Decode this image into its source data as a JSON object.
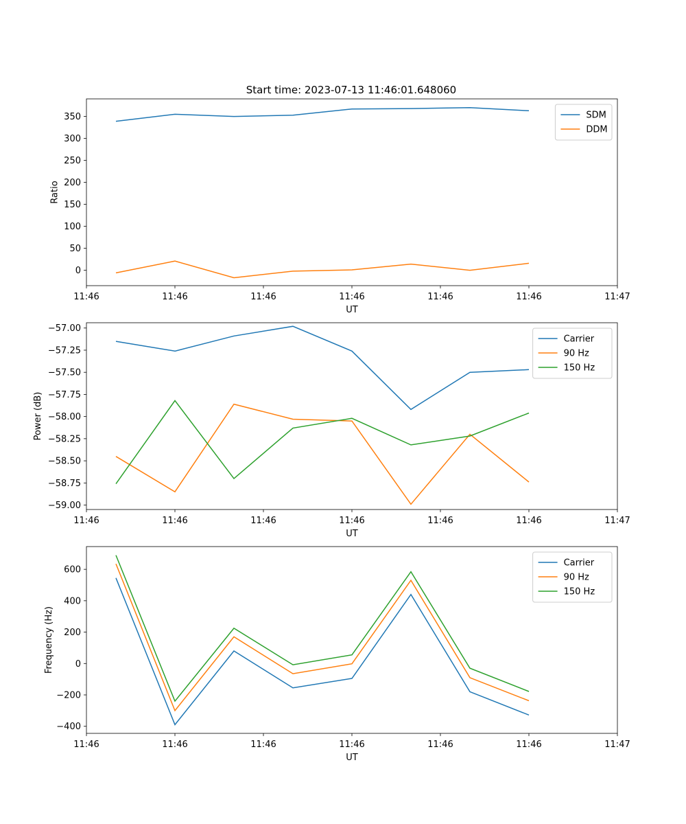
{
  "figure": {
    "title": "Start time: 2023-07-13 11:46:01.648060"
  },
  "chart_data": [
    {
      "type": "line",
      "title": "Start time: 2023-07-13 11:46:01.648060",
      "xlabel": "UT",
      "ylabel": "Ratio",
      "x": [
        0,
        1,
        2,
        3,
        4,
        5,
        6,
        7
      ],
      "xlim": [
        -0.5,
        8.5
      ],
      "xtick_positions": [
        -0.5,
        1,
        2.5,
        4,
        5.5,
        7,
        8.5
      ],
      "xtick_labels": [
        "11:46",
        "11:46",
        "11:46",
        "11:46",
        "11:46",
        "11:46",
        "11:47"
      ],
      "ylim": [
        -35,
        390
      ],
      "yticks": [
        0,
        50,
        100,
        150,
        200,
        250,
        300,
        350
      ],
      "ytick_labels": [
        "0",
        "50",
        "100",
        "150",
        "200",
        "250",
        "300",
        "350"
      ],
      "legend_position": "top-right",
      "series": [
        {
          "name": "SDM",
          "color": "#1f77b4",
          "values": [
            339,
            355,
            350,
            353,
            367,
            368,
            370,
            363
          ]
        },
        {
          "name": "DDM",
          "color": "#ff7f0e",
          "values": [
            -6,
            21,
            -17,
            -2,
            1,
            14,
            0,
            16
          ]
        }
      ]
    },
    {
      "type": "line",
      "title": "",
      "xlabel": "UT",
      "ylabel": "Power (dB)",
      "x": [
        0,
        1,
        2,
        3,
        4,
        5,
        6,
        7
      ],
      "xlim": [
        -0.5,
        8.5
      ],
      "xtick_positions": [
        -0.5,
        1,
        2.5,
        4,
        5.5,
        7,
        8.5
      ],
      "xtick_labels": [
        "11:46",
        "11:46",
        "11:46",
        "11:46",
        "11:46",
        "11:46",
        "11:47"
      ],
      "ylim": [
        -59.05,
        -56.94
      ],
      "yticks": [
        -59.0,
        -58.75,
        -58.5,
        -58.25,
        -58.0,
        -57.75,
        -57.5,
        -57.25,
        -57.0
      ],
      "ytick_labels": [
        "−59.00",
        "−58.75",
        "−58.50",
        "−58.25",
        "−58.00",
        "−57.75",
        "−57.50",
        "−57.25",
        "−57.00"
      ],
      "legend_position": "top-right",
      "series": [
        {
          "name": "Carrier",
          "color": "#1f77b4",
          "values": [
            -57.15,
            -57.26,
            -57.09,
            -56.98,
            -57.26,
            -57.92,
            -57.5,
            -57.47
          ]
        },
        {
          "name": "90 Hz",
          "color": "#ff7f0e",
          "values": [
            -58.45,
            -58.85,
            -57.86,
            -58.03,
            -58.05,
            -58.99,
            -58.2,
            -58.74
          ]
        },
        {
          "name": "150 Hz",
          "color": "#2ca02c",
          "values": [
            -58.76,
            -57.82,
            -58.7,
            -58.13,
            -58.02,
            -58.32,
            -58.22,
            -57.96
          ]
        }
      ]
    },
    {
      "type": "line",
      "title": "",
      "xlabel": "UT",
      "ylabel": "Frequency (Hz)",
      "x": [
        0,
        1,
        2,
        3,
        4,
        5,
        6,
        7
      ],
      "xlim": [
        -0.5,
        8.5
      ],
      "xtick_positions": [
        -0.5,
        1,
        2.5,
        4,
        5.5,
        7,
        8.5
      ],
      "xtick_labels": [
        "11:46",
        "11:46",
        "11:46",
        "11:46",
        "11:46",
        "11:46",
        "11:47"
      ],
      "ylim": [
        -445,
        745
      ],
      "yticks": [
        -400,
        -200,
        0,
        200,
        400,
        600
      ],
      "ytick_labels": [
        "−400",
        "−200",
        "0",
        "200",
        "400",
        "600"
      ],
      "legend_position": "top-right",
      "series": [
        {
          "name": "Carrier",
          "color": "#1f77b4",
          "values": [
            545,
            -390,
            80,
            -155,
            -95,
            440,
            -180,
            -328
          ]
        },
        {
          "name": "90 Hz",
          "color": "#ff7f0e",
          "values": [
            635,
            -300,
            170,
            -65,
            -2,
            530,
            -90,
            -237
          ]
        },
        {
          "name": "150 Hz",
          "color": "#2ca02c",
          "values": [
            690,
            -240,
            225,
            -8,
            55,
            585,
            -30,
            -178
          ]
        }
      ]
    }
  ]
}
